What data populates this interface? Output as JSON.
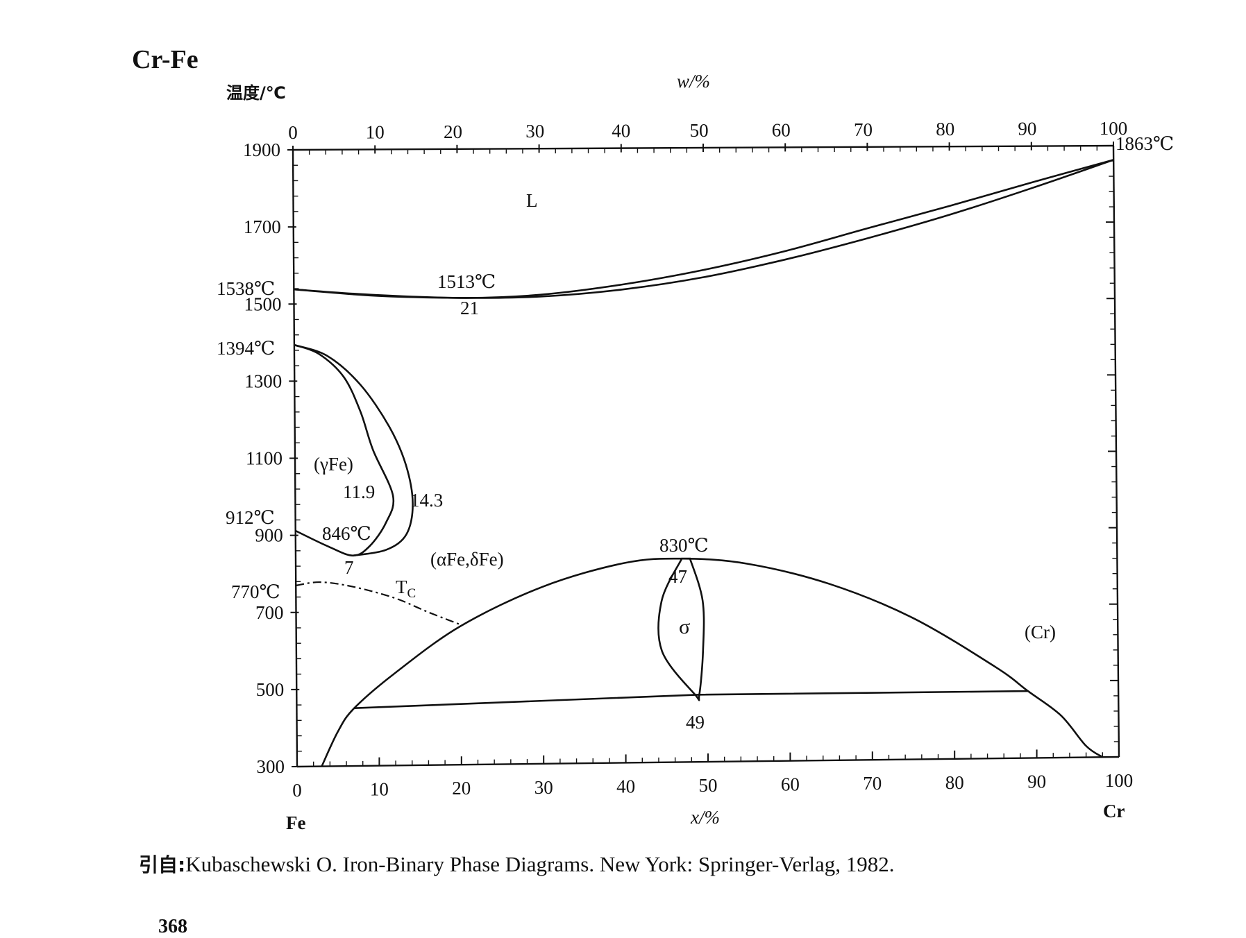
{
  "page_title": "Cr-Fe",
  "y_axis_title": "温度/℃",
  "top_axis_title": "w/%",
  "bottom_axis_title": "x/%",
  "left_element": "Fe",
  "right_element": "Cr",
  "top_ticks": [
    "0",
    "10",
    "20",
    "30",
    "40",
    "50",
    "60",
    "70",
    "80",
    "90",
    "100"
  ],
  "bottom_ticks": [
    "0",
    "10",
    "20",
    "30",
    "40",
    "50",
    "60",
    "70",
    "80",
    "90",
    "100"
  ],
  "y_ticks": [
    "1900",
    "1700",
    "1500",
    "1300",
    "1100",
    "900",
    "700",
    "500",
    "300"
  ],
  "phase_labels": {
    "liquid": "L",
    "gamma": "(γFe)",
    "alpha_delta": "(αFe,δFe)",
    "sigma": "σ",
    "chromium": "(Cr)"
  },
  "annotations": {
    "cr_melting": "1863℃",
    "fe_melting": "1538℃",
    "minimum_temp": "1513℃",
    "minimum_comp": "21",
    "gamma_top": "1394℃",
    "gamma_119": "11.9",
    "gamma_143": "14.3",
    "fe_912": "912℃",
    "gamma_846": "846℃",
    "gamma_7": "7",
    "curie_770": "770℃",
    "curie_label": "T",
    "curie_sub": "C",
    "sigma_830": "830℃",
    "sigma_47": "47",
    "sigma_49": "49"
  },
  "caption_prefix": "引自:",
  "caption": "Kubaschewski O.  Iron-Binary Phase Diagrams.  New York: Springer-Verlag, 1982.",
  "page_number": "368",
  "chart_data": {
    "type": "phase-diagram",
    "x_unit": "x/% (mole fraction Cr)",
    "y_unit": "温度/℃",
    "xlim": [
      0,
      100
    ],
    "ylim": [
      300,
      1900
    ],
    "liquidus": [
      [
        0,
        1538
      ],
      [
        10,
        1522
      ],
      [
        21,
        1513
      ],
      [
        30,
        1520
      ],
      [
        40,
        1545
      ],
      [
        50,
        1582
      ],
      [
        60,
        1630
      ],
      [
        70,
        1688
      ],
      [
        80,
        1745
      ],
      [
        90,
        1805
      ],
      [
        100,
        1863
      ]
    ],
    "solidus": [
      [
        0,
        1538
      ],
      [
        10,
        1520
      ],
      [
        21,
        1513
      ],
      [
        30,
        1515
      ],
      [
        40,
        1532
      ],
      [
        50,
        1563
      ],
      [
        60,
        1608
      ],
      [
        70,
        1662
      ],
      [
        80,
        1722
      ],
      [
        90,
        1790
      ],
      [
        100,
        1863
      ]
    ],
    "gamma_loop_inner": [
      [
        0,
        1394
      ],
      [
        3,
        1370
      ],
      [
        6,
        1310
      ],
      [
        8,
        1220
      ],
      [
        9.5,
        1120
      ],
      [
        11.9,
        1000
      ],
      [
        11,
        930
      ],
      [
        9,
        870
      ],
      [
        7,
        846
      ],
      [
        4,
        870
      ],
      [
        0,
        912
      ]
    ],
    "gamma_loop_outer": [
      [
        0,
        1394
      ],
      [
        4,
        1365
      ],
      [
        8,
        1290
      ],
      [
        11.5,
        1180
      ],
      [
        13.5,
        1080
      ],
      [
        14.3,
        980
      ],
      [
        13.5,
        900
      ],
      [
        11,
        860
      ],
      [
        7,
        846
      ]
    ],
    "curie_line": [
      [
        0,
        770
      ],
      [
        3,
        778
      ],
      [
        7,
        765
      ],
      [
        12,
        735
      ],
      [
        16,
        698
      ],
      [
        20,
        664
      ]
    ],
    "sigma_dome": [
      [
        3,
        300
      ],
      [
        5,
        390
      ],
      [
        7,
        450
      ],
      [
        12,
        540
      ],
      [
        20,
        660
      ],
      [
        30,
        760
      ],
      [
        40,
        820
      ],
      [
        47,
        830
      ],
      [
        55,
        815
      ],
      [
        65,
        760
      ],
      [
        75,
        670
      ],
      [
        85,
        540
      ],
      [
        89,
        475
      ],
      [
        93,
        410
      ],
      [
        96,
        330
      ],
      [
        98,
        300
      ]
    ],
    "sigma_field": [
      [
        47,
        830
      ],
      [
        44.5,
        720
      ],
      [
        44.5,
        590
      ],
      [
        48.5,
        475
      ],
      [
        49,
        475
      ],
      [
        49.5,
        590
      ],
      [
        49.5,
        720
      ],
      [
        48,
        830
      ]
    ],
    "eutectoid_line": [
      [
        7,
        450
      ],
      [
        49,
        475
      ],
      [
        89,
        475
      ]
    ],
    "labels": [
      "L",
      "(γFe)",
      "(αFe,δFe)",
      "σ",
      "(Cr)"
    ]
  }
}
